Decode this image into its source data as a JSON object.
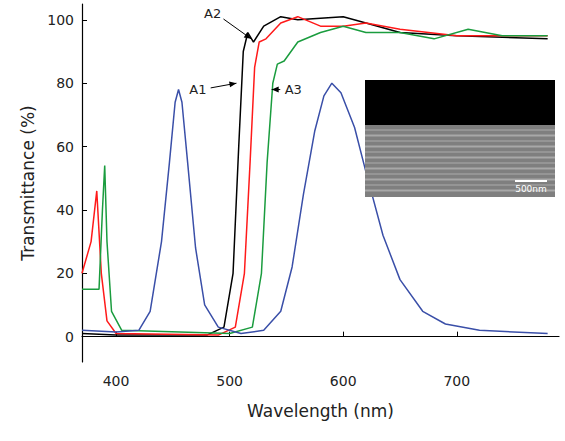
{
  "chart_data": {
    "type": "line",
    "x_label": "Wavelength (nm)",
    "y_label": "Transmittance (%)",
    "xlim": [
      370,
      790
    ],
    "xticks": [
      400,
      500,
      600,
      700
    ],
    "ylim": [
      -8,
      105
    ],
    "yticks": [
      0,
      20,
      40,
      60,
      80,
      100
    ],
    "grid": false,
    "series": [
      {
        "color": "#000000",
        "x": [
          370,
          400,
          480,
          495,
          503,
          508,
          512,
          516,
          521,
          530,
          545,
          560,
          600,
          620,
          650,
          700,
          780
        ],
        "values": [
          1,
          0.5,
          0.5,
          3,
          20,
          60,
          90,
          96,
          93,
          98,
          101,
          100,
          101,
          99,
          96,
          95,
          94
        ]
      },
      {
        "color": "#ff1a1a",
        "x": [
          370,
          378,
          383,
          387,
          392,
          400,
          490,
          505,
          513,
          518,
          522,
          526,
          532,
          545,
          560,
          580,
          600,
          620,
          650,
          700,
          780
        ],
        "values": [
          20,
          30,
          46,
          20,
          5,
          1,
          0.5,
          3,
          20,
          55,
          85,
          93,
          94,
          99,
          101,
          98,
          98,
          99,
          97,
          95,
          95
        ]
      },
      {
        "color": "#1a9c3e",
        "x": [
          370,
          385,
          388,
          390,
          392,
          396,
          405,
          500,
          520,
          528,
          533,
          538,
          542,
          548,
          560,
          580,
          600,
          620,
          650,
          680,
          710,
          740,
          780
        ],
        "values": [
          15,
          15,
          40,
          54,
          30,
          8,
          2,
          1,
          3,
          20,
          55,
          80,
          86,
          87,
          93,
          96,
          98,
          96,
          96,
          94,
          97,
          95,
          95
        ]
      },
      {
        "color": "#3a4fa8",
        "x": [
          370,
          400,
          420,
          430,
          440,
          447,
          452,
          455,
          458,
          463,
          470,
          478,
          490,
          510,
          530,
          545,
          555,
          565,
          575,
          583,
          590,
          598,
          610,
          620,
          635,
          650,
          670,
          690,
          720,
          780
        ],
        "values": [
          2,
          1.5,
          2,
          8,
          30,
          55,
          74,
          78,
          74,
          55,
          28,
          10,
          3,
          1,
          2,
          8,
          22,
          45,
          65,
          76,
          80,
          77,
          66,
          52,
          32,
          18,
          8,
          4,
          2,
          1
        ]
      }
    ],
    "annotations": [
      {
        "text": "A1",
        "x": 472,
        "y": 78,
        "arrow_to": [
          506,
          80
        ]
      },
      {
        "text": "A2",
        "x": 485,
        "y": 102,
        "arrow_to": [
          519,
          94
        ]
      },
      {
        "text": "A3",
        "x": 556,
        "y": 78,
        "arrow_to": [
          537,
          78
        ]
      }
    ],
    "inset": {
      "scale_bar": "500nm"
    }
  }
}
